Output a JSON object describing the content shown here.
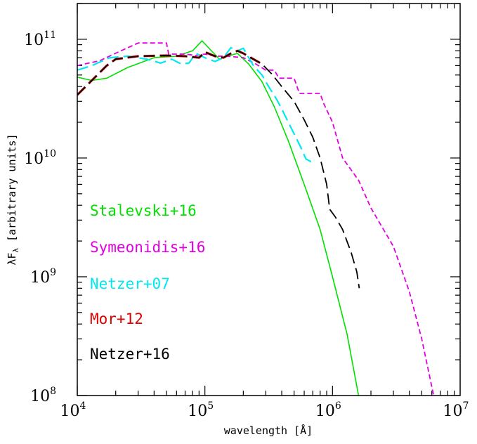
{
  "chart_data": {
    "type": "line",
    "title": "",
    "xlabel": "wavelength [Å]",
    "ylabel": "λF",
    "ylabel_sub": "λ",
    "ylabel_rest": " [arbitrary units]",
    "x_scale": "log",
    "y_scale": "log",
    "xlim": [
      10000,
      10000000
    ],
    "ylim": [
      100000000,
      200000000000
    ],
    "x_ticks": [
      {
        "base": "10",
        "exp": "4",
        "value": 10000
      },
      {
        "base": "10",
        "exp": "5",
        "value": 100000
      },
      {
        "base": "10",
        "exp": "6",
        "value": 1000000
      },
      {
        "base": "10",
        "exp": "7",
        "value": 10000000
      }
    ],
    "y_ticks": [
      {
        "base": "10",
        "exp": "8",
        "value": 100000000
      },
      {
        "base": "10",
        "exp": "9",
        "value": 1000000000
      },
      {
        "base": "10",
        "exp": "10",
        "value": 10000000000
      },
      {
        "base": "10",
        "exp": "11",
        "value": 100000000000
      }
    ],
    "grid": false,
    "legend_position": "bottom-left",
    "series": [
      {
        "name": "Stalevski+16",
        "color": "#00e000",
        "style": "solid",
        "x": [
          10000,
          13000,
          17000,
          25000,
          40000,
          60000,
          80000,
          95000,
          110000,
          130000,
          150000,
          180000,
          220000,
          280000,
          350000,
          450000,
          600000,
          800000,
          1000000,
          1300000,
          1600000
        ],
        "y": [
          48000000000,
          45000000000,
          47000000000,
          58000000000,
          70000000000,
          72000000000,
          80000000000,
          97000000000,
          82000000000,
          68000000000,
          72000000000,
          76000000000,
          62000000000,
          44000000000,
          27000000000,
          14000000000,
          6000000000,
          2500000000,
          1000000000,
          330000000,
          100000000
        ]
      },
      {
        "name": "Symeonidis+16",
        "color": "#e000e0",
        "style": "short-dash",
        "x": [
          10000,
          15000,
          22000,
          30000,
          50000,
          52000,
          70000,
          85000,
          100000,
          120000,
          150000,
          200000,
          250000,
          300000,
          350000,
          380000,
          500000,
          550000,
          800000,
          850000,
          1000000,
          1200000,
          1600000,
          2000000,
          3000000,
          4000000,
          5000000,
          6200000
        ],
        "y": [
          60000000000,
          66000000000,
          80000000000,
          93000000000,
          93000000000,
          75000000000,
          75000000000,
          73000000000,
          75000000000,
          72000000000,
          72000000000,
          70000000000,
          62000000000,
          55000000000,
          55000000000,
          47000000000,
          47000000000,
          35000000000,
          35000000000,
          29000000000,
          20000000000,
          10000000000,
          6500000000,
          3800000000,
          1800000000,
          750000000,
          300000000,
          100000000
        ]
      },
      {
        "name": "Netzer+07",
        "color": "#00e8f0",
        "style": "long-dash",
        "x": [
          10000,
          13000,
          18000,
          25000,
          35000,
          45000,
          55000,
          65000,
          75000,
          85000,
          100000,
          120000,
          140000,
          160000,
          180000,
          200000,
          240000,
          280000,
          320000,
          360000,
          400000,
          450000,
          500000,
          560000,
          620000,
          680000
        ],
        "y": [
          55000000000,
          60000000000,
          70000000000,
          72000000000,
          68000000000,
          63000000000,
          68000000000,
          62000000000,
          63000000000,
          76000000000,
          70000000000,
          65000000000,
          70000000000,
          85000000000,
          80000000000,
          84000000000,
          60000000000,
          50000000000,
          39000000000,
          32000000000,
          26000000000,
          20000000000,
          16000000000,
          12500000000,
          9800000000,
          9300000000
        ]
      },
      {
        "name": "Mor+12",
        "color": "#e00000",
        "style": "long-dash",
        "x": [
          10000,
          13000,
          17000,
          20000,
          30000,
          50000,
          70000,
          90000,
          100000,
          120000,
          140000,
          160000,
          180000,
          200000,
          240000,
          280000
        ],
        "y": [
          34000000000,
          45000000000,
          60000000000,
          68000000000,
          72000000000,
          73000000000,
          72000000000,
          70000000000,
          78000000000,
          72000000000,
          70000000000,
          76000000000,
          80000000000,
          76000000000,
          68000000000,
          62000000000
        ]
      },
      {
        "name": "Netzer+16",
        "color": "#000000",
        "style": "long-dash",
        "x": [
          10000,
          13000,
          17000,
          20000,
          30000,
          50000,
          70000,
          90000,
          100000,
          120000,
          140000,
          160000,
          180000,
          200000,
          240000,
          280000,
          340000,
          400000,
          500000,
          600000,
          700000,
          800000,
          900000,
          950000,
          1050000,
          1200000,
          1400000,
          1550000,
          1620000
        ],
        "y": [
          34000000000,
          45000000000,
          60000000000,
          68000000000,
          72000000000,
          73000000000,
          72000000000,
          70000000000,
          78000000000,
          72000000000,
          70000000000,
          76000000000,
          80000000000,
          76000000000,
          68000000000,
          62000000000,
          50000000000,
          40000000000,
          30000000000,
          21000000000,
          15000000000,
          10000000000,
          6000000000,
          3700000000,
          3200000000,
          2500000000,
          1600000000,
          1100000000,
          800000000
        ]
      }
    ]
  }
}
